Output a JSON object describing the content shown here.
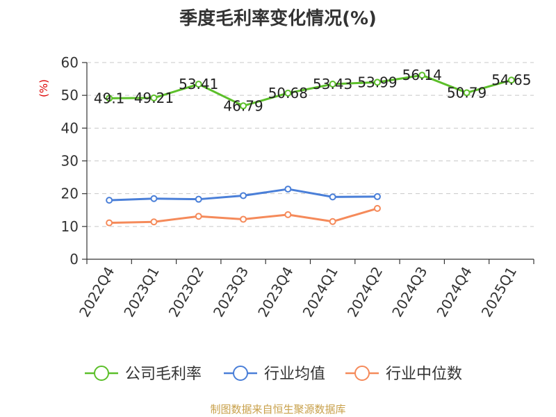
{
  "chart_data": {
    "type": "line",
    "title": "季度毛利率变化情况(%)",
    "ylabel": "(%)",
    "xlabel": "",
    "categories": [
      "2022Q4",
      "2023Q1",
      "2023Q2",
      "2023Q3",
      "2023Q4",
      "2024Q1",
      "2024Q2",
      "2024Q3",
      "2024Q4",
      "2025Q1"
    ],
    "ylim": [
      0,
      60
    ],
    "yticks": [
      0,
      10,
      20,
      30,
      40,
      50,
      60
    ],
    "grid": true,
    "legend_position": "bottom",
    "series": [
      {
        "name": "公司毛利率",
        "color": "#5cbf2a",
        "values": [
          49.1,
          49.21,
          53.41,
          46.79,
          50.68,
          53.43,
          53.99,
          56.14,
          50.79,
          54.65
        ],
        "labels": [
          "49.1",
          "49.21",
          "53.41",
          "46.79",
          "50.68",
          "53.43",
          "53.99",
          "56.14",
          "50.79",
          "54.65"
        ]
      },
      {
        "name": "行业均值",
        "color": "#4a7fd8",
        "values": [
          18.0,
          18.5,
          18.3,
          19.4,
          21.4,
          19.0,
          19.1,
          null,
          null,
          null
        ]
      },
      {
        "name": "行业中位数",
        "color": "#f58a5a",
        "values": [
          11.1,
          11.4,
          13.1,
          12.2,
          13.6,
          11.5,
          15.5,
          null,
          null,
          null
        ]
      }
    ]
  },
  "footer": {
    "source": "制图数据来自恒生聚源数据库"
  }
}
